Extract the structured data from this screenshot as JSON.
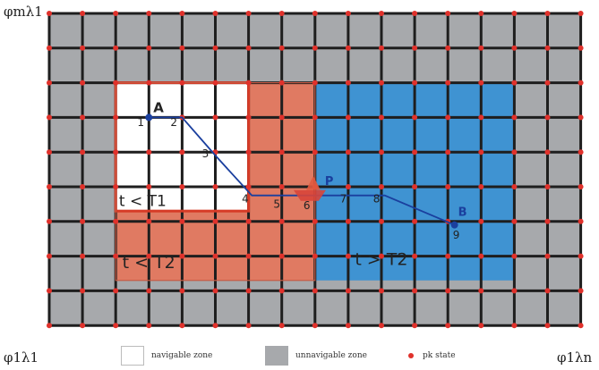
{
  "corners": {
    "top_left": "φmλ1",
    "bottom_left": "φ1λ1",
    "bottom_right": "φ1λn"
  },
  "grid": {
    "columns": 16,
    "rows": 9
  },
  "zones": {
    "navigable_label": "t < T1",
    "mid_label": "t < T2",
    "right_label": "t > T2"
  },
  "points": {
    "A": "A",
    "B": "B",
    "P": "P"
  },
  "path_steps": [
    "1",
    "2",
    "3",
    "4",
    "5",
    "6",
    "7",
    "8",
    "9"
  ],
  "legend": {
    "navigable": "navigable zone",
    "unnavigable": "unnavigable zone",
    "state": "pk state"
  },
  "colors": {
    "cell_gray": "#a7a9ac",
    "node_red": "#e0312b",
    "orange_zone": "#e07a62",
    "blue_zone": "#3f93d2",
    "path": "#1a3f9e"
  }
}
